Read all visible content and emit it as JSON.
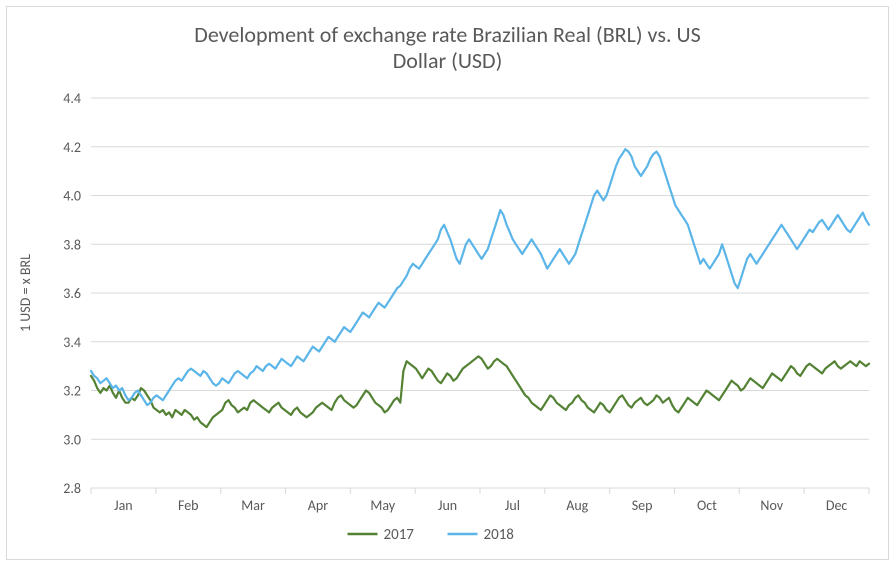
{
  "chart": {
    "type": "line",
    "title_line1": "Development of exchange rate Brazilian Real (BRL) vs. US",
    "title_line2": "Dollar (USD)",
    "title_fontsize": 22,
    "title_color": "#595959",
    "y_axis_title": "1 USD = x BRL",
    "label_fontsize": 14,
    "label_color": "#595959",
    "background_color": "#ffffff",
    "plot_border_color": "#d9d9d9",
    "outer_border_color": "#d9d9d9",
    "grid_color": "#d9d9d9",
    "x_categories": [
      "Jan",
      "Feb",
      "Mar",
      "Apr",
      "May",
      "Jun",
      "Jul",
      "Aug",
      "Sep",
      "Oct",
      "Nov",
      "Dec"
    ],
    "ylim": [
      2.8,
      4.4
    ],
    "ytick_step": 0.2,
    "y_ticks": [
      "2.8",
      "3.0",
      "3.2",
      "3.4",
      "3.6",
      "3.8",
      "4.0",
      "4.2",
      "4.4"
    ],
    "line_width": 2.2,
    "series": [
      {
        "name": "2017",
        "color": "#548235",
        "values": [
          3.26,
          3.24,
          3.21,
          3.19,
          3.21,
          3.2,
          3.22,
          3.19,
          3.17,
          3.2,
          3.17,
          3.15,
          3.15,
          3.17,
          3.16,
          3.18,
          3.21,
          3.2,
          3.18,
          3.16,
          3.13,
          3.12,
          3.11,
          3.12,
          3.1,
          3.11,
          3.09,
          3.12,
          3.11,
          3.1,
          3.12,
          3.11,
          3.1,
          3.08,
          3.09,
          3.07,
          3.06,
          3.05,
          3.07,
          3.09,
          3.1,
          3.11,
          3.12,
          3.15,
          3.16,
          3.14,
          3.13,
          3.11,
          3.12,
          3.13,
          3.12,
          3.15,
          3.16,
          3.15,
          3.14,
          3.13,
          3.12,
          3.11,
          3.13,
          3.14,
          3.15,
          3.13,
          3.12,
          3.11,
          3.1,
          3.12,
          3.13,
          3.11,
          3.1,
          3.09,
          3.1,
          3.11,
          3.13,
          3.14,
          3.15,
          3.14,
          3.13,
          3.12,
          3.15,
          3.17,
          3.18,
          3.16,
          3.15,
          3.14,
          3.13,
          3.14,
          3.16,
          3.18,
          3.2,
          3.19,
          3.17,
          3.15,
          3.14,
          3.13,
          3.11,
          3.12,
          3.14,
          3.16,
          3.17,
          3.15,
          3.28,
          3.32,
          3.31,
          3.3,
          3.29,
          3.27,
          3.25,
          3.27,
          3.29,
          3.28,
          3.26,
          3.24,
          3.23,
          3.25,
          3.27,
          3.26,
          3.24,
          3.25,
          3.27,
          3.29,
          3.3,
          3.31,
          3.32,
          3.33,
          3.34,
          3.33,
          3.31,
          3.29,
          3.3,
          3.32,
          3.33,
          3.32,
          3.31,
          3.3,
          3.28,
          3.26,
          3.24,
          3.22,
          3.2,
          3.18,
          3.17,
          3.15,
          3.14,
          3.13,
          3.12,
          3.14,
          3.16,
          3.18,
          3.17,
          3.15,
          3.14,
          3.13,
          3.12,
          3.14,
          3.15,
          3.17,
          3.18,
          3.16,
          3.15,
          3.13,
          3.12,
          3.11,
          3.13,
          3.15,
          3.14,
          3.12,
          3.11,
          3.13,
          3.15,
          3.17,
          3.18,
          3.16,
          3.14,
          3.13,
          3.15,
          3.16,
          3.17,
          3.15,
          3.14,
          3.15,
          3.16,
          3.18,
          3.17,
          3.15,
          3.16,
          3.17,
          3.14,
          3.12,
          3.11,
          3.13,
          3.15,
          3.17,
          3.16,
          3.15,
          3.14,
          3.16,
          3.18,
          3.2,
          3.19,
          3.18,
          3.17,
          3.16,
          3.18,
          3.2,
          3.22,
          3.24,
          3.23,
          3.22,
          3.2,
          3.21,
          3.23,
          3.25,
          3.24,
          3.23,
          3.22,
          3.21,
          3.23,
          3.25,
          3.27,
          3.26,
          3.25,
          3.24,
          3.26,
          3.28,
          3.3,
          3.29,
          3.27,
          3.26,
          3.28,
          3.3,
          3.31,
          3.3,
          3.29,
          3.28,
          3.27,
          3.29,
          3.3,
          3.31,
          3.32,
          3.3,
          3.29,
          3.3,
          3.31,
          3.32,
          3.31,
          3.3,
          3.32,
          3.31,
          3.3,
          3.31
        ]
      },
      {
        "name": "2018",
        "color": "#5bb5e8",
        "values": [
          3.28,
          3.26,
          3.25,
          3.23,
          3.24,
          3.25,
          3.23,
          3.21,
          3.22,
          3.2,
          3.21,
          3.18,
          3.16,
          3.17,
          3.19,
          3.2,
          3.18,
          3.16,
          3.14,
          3.15,
          3.17,
          3.18,
          3.17,
          3.16,
          3.18,
          3.2,
          3.22,
          3.24,
          3.25,
          3.24,
          3.26,
          3.28,
          3.29,
          3.28,
          3.27,
          3.26,
          3.28,
          3.27,
          3.25,
          3.23,
          3.22,
          3.23,
          3.25,
          3.24,
          3.23,
          3.25,
          3.27,
          3.28,
          3.27,
          3.26,
          3.25,
          3.27,
          3.28,
          3.3,
          3.29,
          3.28,
          3.3,
          3.31,
          3.3,
          3.29,
          3.31,
          3.33,
          3.32,
          3.31,
          3.3,
          3.32,
          3.34,
          3.33,
          3.32,
          3.34,
          3.36,
          3.38,
          3.37,
          3.36,
          3.38,
          3.4,
          3.42,
          3.41,
          3.4,
          3.42,
          3.44,
          3.46,
          3.45,
          3.44,
          3.46,
          3.48,
          3.5,
          3.52,
          3.51,
          3.5,
          3.52,
          3.54,
          3.56,
          3.55,
          3.54,
          3.56,
          3.58,
          3.6,
          3.62,
          3.63,
          3.65,
          3.67,
          3.7,
          3.72,
          3.71,
          3.7,
          3.72,
          3.74,
          3.76,
          3.78,
          3.8,
          3.82,
          3.86,
          3.88,
          3.85,
          3.82,
          3.78,
          3.74,
          3.72,
          3.76,
          3.8,
          3.82,
          3.8,
          3.78,
          3.76,
          3.74,
          3.76,
          3.78,
          3.82,
          3.86,
          3.9,
          3.94,
          3.92,
          3.88,
          3.85,
          3.82,
          3.8,
          3.78,
          3.76,
          3.78,
          3.8,
          3.82,
          3.8,
          3.78,
          3.76,
          3.73,
          3.7,
          3.72,
          3.74,
          3.76,
          3.78,
          3.76,
          3.74,
          3.72,
          3.74,
          3.76,
          3.8,
          3.84,
          3.88,
          3.92,
          3.96,
          4.0,
          4.02,
          4.0,
          3.98,
          4.0,
          4.04,
          4.08,
          4.12,
          4.15,
          4.17,
          4.19,
          4.18,
          4.16,
          4.12,
          4.1,
          4.08,
          4.1,
          4.12,
          4.15,
          4.17,
          4.18,
          4.16,
          4.12,
          4.08,
          4.04,
          4.0,
          3.96,
          3.94,
          3.92,
          3.9,
          3.88,
          3.84,
          3.8,
          3.76,
          3.72,
          3.74,
          3.72,
          3.7,
          3.72,
          3.74,
          3.76,
          3.8,
          3.76,
          3.72,
          3.68,
          3.64,
          3.62,
          3.66,
          3.7,
          3.74,
          3.76,
          3.74,
          3.72,
          3.74,
          3.76,
          3.78,
          3.8,
          3.82,
          3.84,
          3.86,
          3.88,
          3.86,
          3.84,
          3.82,
          3.8,
          3.78,
          3.8,
          3.82,
          3.84,
          3.86,
          3.85,
          3.87,
          3.89,
          3.9,
          3.88,
          3.86,
          3.88,
          3.9,
          3.92,
          3.9,
          3.88,
          3.86,
          3.85,
          3.87,
          3.89,
          3.91,
          3.93,
          3.9,
          3.88
        ]
      }
    ],
    "legend_position": "bottom-center"
  }
}
